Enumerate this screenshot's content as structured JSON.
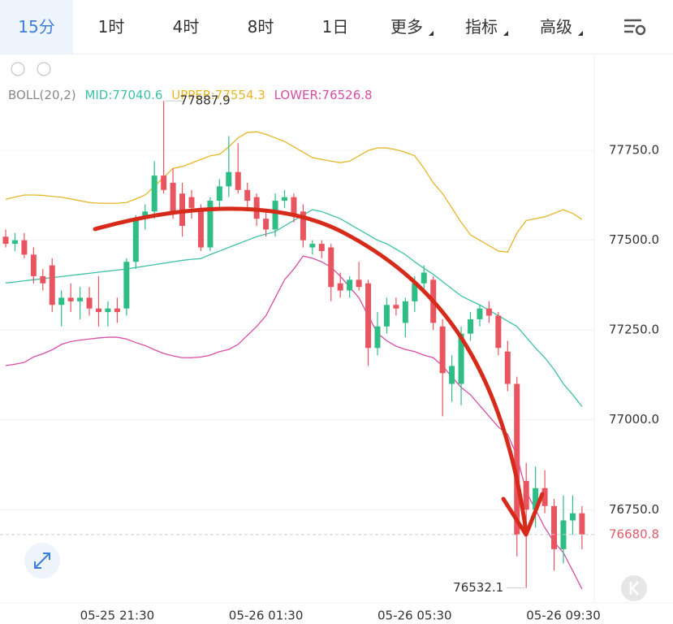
{
  "toolbar": {
    "tabs": [
      "15分",
      "1时",
      "4时",
      "8时",
      "1日",
      "更多",
      "指标",
      "高级"
    ]
  },
  "chart_data": {
    "type": "candlestick",
    "categories": [
      null,
      null,
      null,
      null,
      null,
      null,
      null,
      null,
      null,
      null,
      null,
      null,
      "05-25 21:30",
      null,
      null,
      null,
      null,
      null,
      null,
      null,
      null,
      null,
      null,
      null,
      null,
      null,
      null,
      null,
      "05-26 01:30",
      null,
      null,
      null,
      null,
      null,
      null,
      null,
      null,
      null,
      null,
      null,
      null,
      null,
      null,
      null,
      "05-26 05:30",
      null,
      null,
      null,
      null,
      null,
      null,
      null,
      null,
      null,
      null,
      null,
      null,
      null,
      null,
      null,
      "05-26 09:30",
      null,
      null
    ],
    "open": [
      77510,
      77490,
      77500,
      77460,
      77400,
      77430,
      77320,
      77340,
      77330,
      77340,
      77310,
      77300,
      77310,
      77310,
      77440,
      77560,
      77580,
      77680,
      77660,
      77630,
      77620,
      77590,
      77480,
      77610,
      77650,
      77690,
      77640,
      77620,
      77560,
      77530,
      77610,
      77620,
      77580,
      77480,
      77490,
      77480,
      77380,
      77360,
      77390,
      77380,
      77200,
      77260,
      77320,
      77270,
      77330,
      77380,
      77390,
      77260,
      77100,
      77100,
      77240,
      77280,
      77310,
      77290,
      77190,
      77100,
      76830,
      76750,
      76810,
      76760,
      76640,
      76720,
      76740
    ],
    "high": [
      77530,
      77520,
      77520,
      77480,
      77420,
      77450,
      77360,
      77380,
      77370,
      77370,
      77400,
      77330,
      77340,
      77450,
      77570,
      77600,
      77720,
      77887.9,
      77700,
      77660,
      77640,
      77600,
      77620,
      77670,
      77790,
      77770,
      77660,
      77630,
      77580,
      77630,
      77640,
      77630,
      77600,
      77500,
      77500,
      77490,
      77410,
      77400,
      77440,
      77390,
      77300,
      77340,
      77340,
      77340,
      77400,
      77430,
      77400,
      77280,
      77180,
      77260,
      77300,
      77320,
      77330,
      77300,
      77220,
      77120,
      76880,
      76870,
      76860,
      76780,
      76790,
      76790,
      76760
    ],
    "low": [
      77480,
      77470,
      77450,
      77380,
      77360,
      77300,
      77260,
      77300,
      77280,
      77290,
      77260,
      77260,
      77270,
      77290,
      77420,
      77530,
      77560,
      77630,
      77560,
      77510,
      77560,
      77470,
      77470,
      77590,
      77620,
      77630,
      77590,
      77540,
      77510,
      77510,
      77590,
      77550,
      77480,
      77460,
      77450,
      77330,
      77340,
      77340,
      77360,
      77150,
      77180,
      77240,
      77290,
      77230,
      77300,
      77360,
      77250,
      77010,
      77050,
      77040,
      77220,
      77260,
      77270,
      77180,
      77080,
      76620,
      76532.1,
      76700,
      76740,
      76580,
      76600,
      76680,
      76640
    ],
    "close": [
      77490,
      77500,
      77460,
      77400,
      77380,
      77320,
      77340,
      77330,
      77340,
      77310,
      77300,
      77310,
      77300,
      77440,
      77560,
      77580,
      77680,
      77640,
      77580,
      77540,
      77590,
      77480,
      77610,
      77650,
      77690,
      77640,
      77610,
      77560,
      77530,
      77610,
      77620,
      77570,
      77500,
      77490,
      77470,
      77370,
      77360,
      77390,
      77370,
      77200,
      77260,
      77320,
      77310,
      77330,
      77380,
      77410,
      77270,
      77130,
      77150,
      77240,
      77280,
      77310,
      77290,
      77200,
      77100,
      76680,
      76750,
      76810,
      76760,
      76640,
      76720,
      76740,
      76680.8
    ],
    "up_color": "#2ebd85",
    "down_color": "#e8545f",
    "indicator": {
      "label": "BOLL(20,2)",
      "mid": {
        "label": "MID:77040.6",
        "color": "#3cc0a8",
        "values": [
          77381,
          77384,
          77387,
          77390,
          77393,
          77396,
          77399,
          77402,
          77405,
          77408,
          77411,
          77414,
          77417,
          77420,
          77424,
          77428,
          77432,
          77436,
          77440,
          77444,
          77447,
          77449,
          77460,
          77470,
          77480,
          77490,
          77500,
          77510,
          77517,
          77524,
          77540,
          77555,
          77570,
          77585,
          77580,
          77570,
          77560,
          77545,
          77530,
          77515,
          77500,
          77490,
          77475,
          77460,
          77440,
          77422,
          77405,
          77385,
          77365,
          77345,
          77332,
          77320,
          77305,
          77290,
          77275,
          77260,
          77230,
          77200,
          77173,
          77140,
          77100,
          77070,
          77037
        ]
      },
      "upper": {
        "label": "UPPER:77554.3",
        "color": "#e5b62a",
        "values": [
          77614,
          77620,
          77626,
          77626,
          77625,
          77622,
          77620,
          77615,
          77610,
          77605,
          77603,
          77603,
          77603,
          77605,
          77615,
          77626,
          77650,
          77675,
          77700,
          77705,
          77715,
          77725,
          77735,
          77739,
          77760,
          77785,
          77800,
          77802,
          77795,
          77785,
          77775,
          77760,
          77745,
          77730,
          77725,
          77720,
          77716,
          77720,
          77735,
          77750,
          77757,
          77757,
          77752,
          77745,
          77735,
          77700,
          77660,
          77630,
          77590,
          77550,
          77515,
          77500,
          77485,
          77470,
          77467,
          77520,
          77555,
          77560,
          77565,
          77575,
          77585,
          77575,
          77558
        ]
      },
      "lower": {
        "label": "LOWER:76526.8",
        "color": "#d54ea5",
        "values": [
          77151,
          77155,
          77160,
          77175,
          77184,
          77195,
          77210,
          77218,
          77222,
          77225,
          77228,
          77230,
          77230,
          77225,
          77215,
          77207,
          77195,
          77185,
          77178,
          77173,
          77173,
          77175,
          77180,
          77190,
          77196,
          77210,
          77235,
          77260,
          77290,
          77340,
          77390,
          77420,
          77456,
          77450,
          77440,
          77425,
          77400,
          77370,
          77340,
          77290,
          77241,
          77220,
          77205,
          77196,
          77190,
          77180,
          77173,
          77150,
          77120,
          77090,
          77070,
          77040,
          77010,
          76980,
          76960,
          76900,
          76800,
          76750,
          76700,
          76660,
          76630,
          76580,
          76529
        ]
      }
    },
    "ylim": [
      76495,
      78015
    ],
    "yticks": [
      {
        "value": 77750,
        "label": "77750.0"
      },
      {
        "value": 77500,
        "label": "77500.0"
      },
      {
        "value": 77250,
        "label": "77250.0"
      },
      {
        "value": 77000,
        "label": "77000.0"
      },
      {
        "value": 76750,
        "label": "76750.0"
      }
    ],
    "grid": true,
    "max_label": "77887.9",
    "min_label": "76532.1",
    "last_price": {
      "value": 76680.8,
      "label": "76680.8",
      "color": "#e05b6a"
    }
  }
}
